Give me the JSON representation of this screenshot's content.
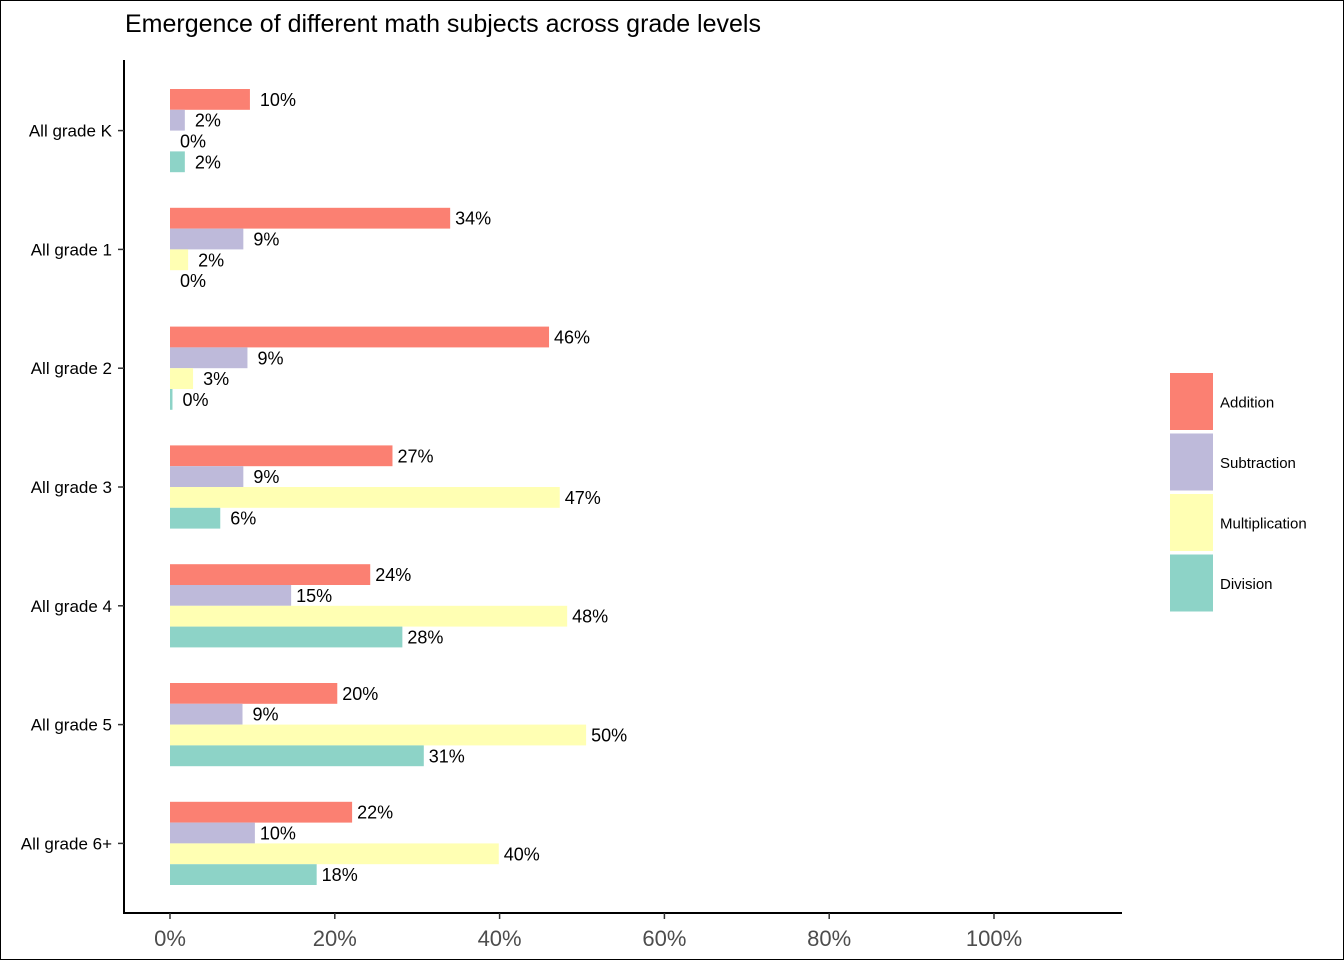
{
  "chart_data": {
    "type": "bar",
    "orientation": "horizontal",
    "title": "Emergence of different math subjects across grade levels",
    "xlabel": "",
    "ylabel": "",
    "xlim": [
      0,
      1.15
    ],
    "x_ticks": [
      {
        "value": 0,
        "label": "0%"
      },
      {
        "value": 0.2,
        "label": "20%"
      },
      {
        "value": 0.4,
        "label": "40%"
      },
      {
        "value": 0.6,
        "label": "60%"
      },
      {
        "value": 0.8,
        "label": "80%"
      },
      {
        "value": 1.0,
        "label": "100%"
      }
    ],
    "grid": false,
    "legend_position": "right",
    "categories": [
      "All grade K",
      "All grade 1",
      "All grade 2",
      "All grade 3",
      "All grade 4",
      "All grade 5",
      "All grade 6+"
    ],
    "series": [
      {
        "name": "Addition",
        "color": "#fb8072",
        "values": [
          0.097,
          0.34,
          0.46,
          0.27,
          0.243,
          0.203,
          0.221
        ],
        "labels": [
          "10%",
          "34%",
          "46%",
          "27%",
          "24%",
          "20%",
          "22%"
        ]
      },
      {
        "name": "Subtraction",
        "color": "#bebada",
        "values": [
          0.018,
          0.089,
          0.094,
          0.089,
          0.147,
          0.088,
          0.103
        ],
        "labels": [
          "2%",
          "9%",
          "9%",
          "9%",
          "15%",
          "9%",
          "10%"
        ]
      },
      {
        "name": "Multiplication",
        "color": "#ffffb3",
        "values": [
          0.0,
          0.022,
          0.028,
          0.473,
          0.482,
          0.505,
          0.399
        ],
        "labels": [
          "0%",
          "2%",
          "3%",
          "47%",
          "48%",
          "50%",
          "40%"
        ]
      },
      {
        "name": "Division",
        "color": "#8dd3c7",
        "values": [
          0.018,
          0.0,
          0.003,
          0.061,
          0.282,
          0.308,
          0.178
        ],
        "labels": [
          "2%",
          "0%",
          "0%",
          "6%",
          "28%",
          "31%",
          "18%"
        ]
      }
    ]
  }
}
